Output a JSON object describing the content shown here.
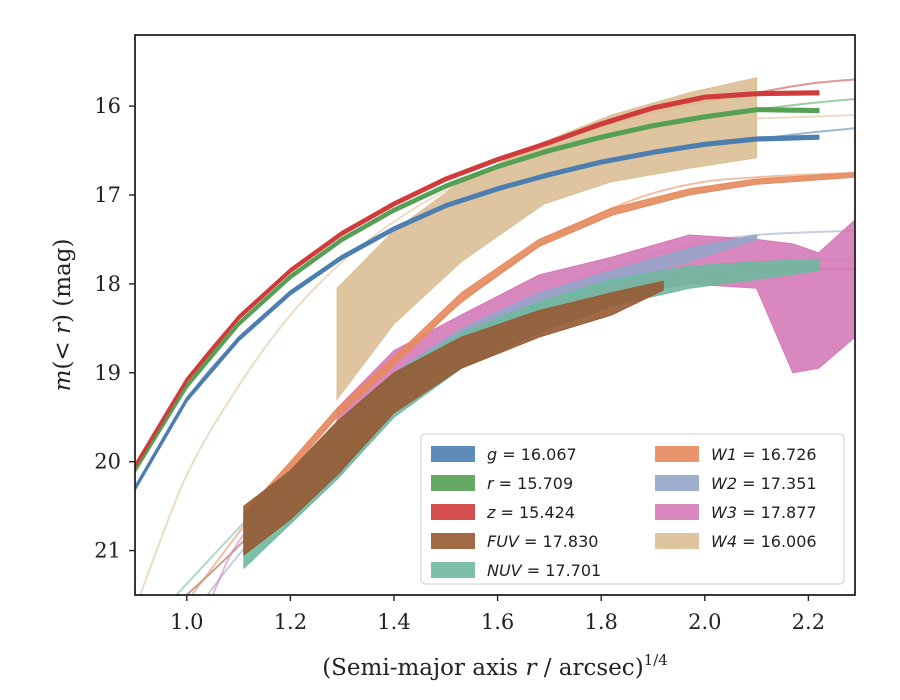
{
  "chart_data": {
    "type": "line",
    "xlabel_main": "(Semi-major axis ",
    "xlabel_var": "r",
    "xlabel_unit": " / arcsec)",
    "xlabel_exp": "1/4",
    "ylabel_var1": "m",
    "ylabel_mid": "(< ",
    "ylabel_var2": "r",
    "ylabel_end": ") (mag)",
    "xlim": [
      0.9,
      2.29
    ],
    "ylim": [
      21.5,
      15.2
    ],
    "xticks": [
      1.0,
      1.2,
      1.4,
      1.6,
      1.8,
      2.0,
      2.2
    ],
    "xtick_labels": [
      "1.0",
      "1.2",
      "1.4",
      "1.6",
      "1.8",
      "2.0",
      "2.2"
    ],
    "yticks": [
      16,
      17,
      18,
      19,
      20,
      21
    ],
    "ytick_labels": [
      "16",
      "17",
      "18",
      "19",
      "20",
      "21"
    ],
    "grid": false,
    "legend_position": "lower-right",
    "series": [
      {
        "band": "g",
        "label": "g = 16.067",
        "color": "#4c7eb0",
        "model_x": [
          0.9,
          1.0,
          1.1,
          1.2,
          1.3,
          1.4,
          1.5,
          1.6,
          1.7,
          1.8,
          1.9,
          2.0,
          2.1,
          2.2,
          2.29
        ],
        "model_y": [
          20.3,
          19.3,
          18.62,
          18.1,
          17.7,
          17.38,
          17.12,
          16.93,
          16.77,
          16.63,
          16.52,
          16.43,
          16.37,
          16.3,
          16.25
        ],
        "band_x": [
          0.9,
          1.0,
          1.1,
          1.2,
          1.3,
          1.4,
          1.5,
          1.6,
          1.7,
          1.8,
          1.9,
          2.0,
          2.1,
          2.22
        ],
        "band_lo": [
          20.28,
          19.28,
          18.6,
          18.08,
          17.68,
          17.36,
          17.1,
          16.91,
          16.75,
          16.61,
          16.5,
          16.41,
          16.35,
          16.33
        ],
        "band_hi": [
          20.32,
          19.32,
          18.64,
          18.12,
          17.72,
          17.4,
          17.14,
          16.95,
          16.79,
          16.65,
          16.54,
          16.45,
          16.39,
          16.37
        ]
      },
      {
        "band": "r",
        "label": "r = 15.709",
        "color": "#55a054",
        "model_x": [
          0.9,
          1.0,
          1.1,
          1.2,
          1.3,
          1.4,
          1.5,
          1.6,
          1.7,
          1.8,
          1.9,
          2.0,
          2.1,
          2.2,
          2.29
        ],
        "model_y": [
          20.1,
          19.15,
          18.45,
          17.92,
          17.5,
          17.17,
          16.9,
          16.68,
          16.5,
          16.35,
          16.22,
          16.12,
          16.04,
          15.97,
          15.92
        ],
        "band_x": [
          0.9,
          1.0,
          1.1,
          1.2,
          1.3,
          1.4,
          1.5,
          1.6,
          1.7,
          1.8,
          1.9,
          2.0,
          2.1,
          2.22
        ],
        "band_lo": [
          20.08,
          19.13,
          18.43,
          17.9,
          17.48,
          17.15,
          16.88,
          16.66,
          16.48,
          16.33,
          16.2,
          16.1,
          16.02,
          16.03
        ],
        "band_hi": [
          20.12,
          19.17,
          18.47,
          17.94,
          17.52,
          17.19,
          16.92,
          16.7,
          16.52,
          16.37,
          16.24,
          16.14,
          16.06,
          16.07
        ]
      },
      {
        "band": "z",
        "label": "z = 15.424",
        "color": "#d03b3b",
        "model_x": [
          0.9,
          1.0,
          1.1,
          1.2,
          1.3,
          1.4,
          1.5,
          1.6,
          1.7,
          1.8,
          1.9,
          2.0,
          2.1,
          2.2,
          2.29
        ],
        "model_y": [
          20.05,
          19.08,
          18.38,
          17.85,
          17.43,
          17.1,
          16.82,
          16.6,
          16.41,
          16.23,
          16.08,
          15.95,
          15.85,
          15.75,
          15.7
        ],
        "band_x": [
          0.9,
          1.0,
          1.1,
          1.2,
          1.3,
          1.4,
          1.5,
          1.6,
          1.7,
          1.8,
          1.9,
          2.0,
          2.1,
          2.22
        ],
        "band_lo": [
          20.03,
          19.06,
          18.36,
          17.83,
          17.41,
          17.08,
          16.8,
          16.58,
          16.39,
          16.18,
          16.0,
          15.88,
          15.84,
          15.83
        ],
        "band_hi": [
          20.07,
          19.1,
          18.4,
          17.87,
          17.45,
          17.12,
          16.84,
          16.62,
          16.43,
          16.22,
          16.04,
          15.92,
          15.88,
          15.87
        ]
      },
      {
        "band": "FUV",
        "label": "FUV = 17.830",
        "color": "#965a33",
        "model_x": [
          1.0,
          1.1,
          1.2,
          1.3,
          1.4,
          1.5,
          1.6,
          1.7,
          1.8,
          1.9,
          2.0,
          2.1,
          2.2,
          2.29
        ],
        "model_y": [
          21.5,
          20.95,
          20.3,
          19.72,
          19.22,
          18.82,
          18.5,
          18.27,
          18.1,
          17.98,
          17.9,
          17.85,
          17.83,
          17.83
        ],
        "band_x": [
          1.11,
          1.2,
          1.29,
          1.4,
          1.53,
          1.68,
          1.82,
          1.92
        ],
        "band_lo": [
          20.5,
          20.1,
          19.55,
          19.0,
          18.6,
          18.3,
          18.1,
          17.97
        ],
        "band_hi": [
          21.05,
          20.65,
          20.15,
          19.45,
          18.95,
          18.6,
          18.35,
          18.07
        ]
      },
      {
        "band": "NUV",
        "label": "NUV = 17.701",
        "color": "#70b8a0",
        "model_x": [
          0.98,
          1.1,
          1.2,
          1.3,
          1.4,
          1.5,
          1.6,
          1.7,
          1.8,
          1.9,
          2.0,
          2.1,
          2.2,
          2.29
        ],
        "model_y": [
          21.5,
          20.75,
          20.15,
          19.6,
          19.12,
          18.75,
          18.45,
          18.22,
          18.03,
          17.9,
          17.8,
          17.75,
          17.73,
          17.72
        ],
        "band_x": [
          1.11,
          1.2,
          1.29,
          1.4,
          1.53,
          1.68,
          1.82,
          1.97,
          2.1,
          2.22
        ],
        "band_lo": [
          20.6,
          20.1,
          19.55,
          19.0,
          18.55,
          18.2,
          17.95,
          17.8,
          17.75,
          17.72
        ],
        "band_hi": [
          21.2,
          20.7,
          20.2,
          19.5,
          18.95,
          18.55,
          18.25,
          18.05,
          17.95,
          17.85
        ]
      },
      {
        "band": "W1",
        "label": "W1 = 16.726",
        "color": "#e58a5e",
        "model_x": [
          1.01,
          1.1,
          1.2,
          1.3,
          1.4,
          1.5,
          1.6,
          1.7,
          1.8,
          1.9,
          2.0,
          2.1,
          2.2,
          2.29
        ],
        "model_y": [
          21.5,
          20.8,
          20.05,
          19.4,
          18.85,
          18.35,
          17.9,
          17.5,
          17.2,
          16.98,
          16.85,
          16.8,
          16.77,
          16.75
        ],
        "band_x": [
          1.11,
          1.2,
          1.29,
          1.4,
          1.53,
          1.68,
          1.82,
          1.97,
          2.1,
          2.29
        ],
        "band_lo": [
          20.58,
          20.0,
          19.4,
          18.82,
          18.1,
          17.5,
          17.15,
          16.93,
          16.82,
          16.75
        ],
        "band_hi": [
          20.72,
          20.1,
          19.5,
          18.92,
          18.2,
          17.58,
          17.23,
          17.0,
          16.88,
          16.8
        ]
      },
      {
        "band": "W2",
        "label": "W2 = 17.351",
        "color": "#95a5c8",
        "model_x": [
          1.04,
          1.1,
          1.2,
          1.3,
          1.4,
          1.5,
          1.6,
          1.7,
          1.8,
          1.9,
          2.0,
          2.1,
          2.2,
          2.29
        ],
        "model_y": [
          21.5,
          21.05,
          20.4,
          19.78,
          19.25,
          18.8,
          18.42,
          18.1,
          17.85,
          17.67,
          17.53,
          17.45,
          17.42,
          17.4
        ],
        "band_x": [
          1.11,
          1.2,
          1.29,
          1.4,
          1.53,
          1.68,
          1.82,
          1.97,
          2.1
        ],
        "band_lo": [
          20.7,
          20.2,
          19.58,
          19.0,
          18.5,
          18.1,
          17.85,
          17.6,
          17.45
        ],
        "band_hi": [
          20.95,
          20.4,
          19.8,
          19.25,
          18.75,
          18.3,
          18.0,
          17.75,
          17.5
        ]
      },
      {
        "band": "W3",
        "label": "W3 = 17.877",
        "color": "#d57ab8",
        "model_x": [
          1.05,
          1.1,
          1.2,
          1.3,
          1.4,
          1.5,
          1.6,
          1.7,
          1.8,
          1.9,
          2.0,
          2.1,
          2.2,
          2.29
        ],
        "model_y": [
          21.5,
          20.9,
          20.25,
          19.65,
          19.15,
          18.75,
          18.45,
          18.22,
          18.05,
          17.95,
          17.88,
          17.85,
          17.84,
          17.84
        ],
        "band_x": [
          1.29,
          1.4,
          1.53,
          1.68,
          1.82,
          1.97,
          2.1,
          2.17,
          2.22,
          2.29
        ],
        "band_lo": [
          19.4,
          18.75,
          18.35,
          17.9,
          17.7,
          17.45,
          17.5,
          17.55,
          17.65,
          17.28
        ],
        "band_hi": [
          20.2,
          19.3,
          18.85,
          18.35,
          18.15,
          18.0,
          18.05,
          19.0,
          18.95,
          18.6
        ]
      },
      {
        "band": "W4",
        "label": "W4 = 16.006",
        "color": "#dcbf95",
        "model_x": [
          0.91,
          1.0,
          1.1,
          1.2,
          1.3,
          1.4,
          1.5,
          1.6,
          1.7,
          1.8,
          1.9,
          2.0,
          2.1,
          2.2,
          2.29
        ],
        "model_y": [
          21.5,
          20.15,
          19.15,
          18.35,
          17.75,
          17.3,
          16.95,
          16.7,
          16.5,
          16.35,
          16.25,
          16.18,
          16.14,
          16.12,
          16.1
        ],
        "band_x": [
          1.29,
          1.4,
          1.53,
          1.69,
          1.82,
          1.97,
          2.1
        ],
        "band_lo": [
          18.05,
          17.4,
          16.85,
          16.4,
          16.1,
          15.85,
          15.68
        ],
        "band_hi": [
          19.3,
          18.45,
          17.75,
          17.1,
          16.85,
          16.7,
          16.58
        ]
      }
    ]
  }
}
